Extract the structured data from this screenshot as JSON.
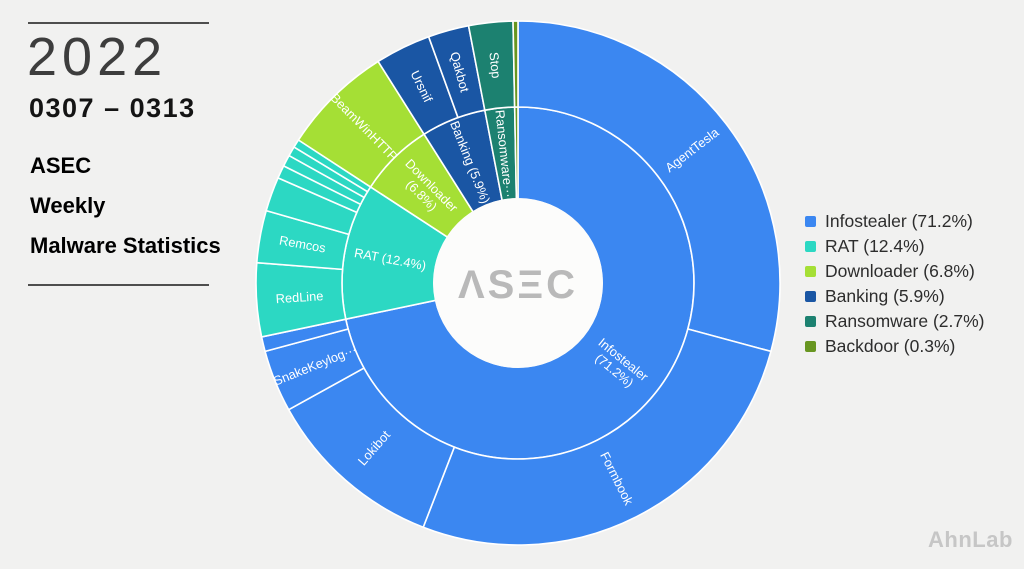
{
  "page": {
    "background": "#f1f1f0"
  },
  "left_panel": {
    "year": "2022",
    "date_range": "0307 – 0313",
    "title_lines": [
      "ASEC",
      "Weekly",
      "Malware Statistics"
    ]
  },
  "chart_data": {
    "type": "pie",
    "subtype": "sunburst-donut",
    "description": "Weekly malware statistics: category share (inner ring) and family breakdown (outer ring)",
    "unit": "%",
    "start_angle_deg": 0,
    "clockwise": true,
    "center_label": "ASEC",
    "center_label_color": "#b9b9b9",
    "hole_color": "#fcfcfb",
    "segment_border_color": "#ffffff",
    "legend_position": "right",
    "categories": [
      {
        "name": "Infostealer",
        "pct": 71.2,
        "color": "#3b87f1",
        "ring_label": "Infostealer\n(71.2%)",
        "children": [
          {
            "name": "AgentTesla",
            "pct": 29.0
          },
          {
            "name": "Formbook",
            "pct": 26.5
          },
          {
            "name": "Lokibot",
            "pct": 11.0
          },
          {
            "name": "SnakeKeylog···",
            "pct": 3.8
          },
          {
            "name": "",
            "pct": 0.9
          }
        ]
      },
      {
        "name": "RAT",
        "pct": 12.4,
        "color": "#2cd8c3",
        "ring_label": "RAT (12.4%)",
        "children": [
          {
            "name": "RedLine",
            "pct": 4.5
          },
          {
            "name": "Remcos",
            "pct": 3.2
          },
          {
            "name": "",
            "pct": 2.1
          },
          {
            "name": "",
            "pct": 0.8
          },
          {
            "name": "",
            "pct": 0.7
          },
          {
            "name": "",
            "pct": 0.6
          },
          {
            "name": "",
            "pct": 0.5
          }
        ]
      },
      {
        "name": "Downloader",
        "pct": 6.8,
        "color": "#a5df35",
        "ring_label": "Downloader\n(6.8%)",
        "children": [
          {
            "name": "BeamWinHTTP",
            "pct": 6.8
          }
        ]
      },
      {
        "name": "Banking",
        "pct": 5.9,
        "color": "#1a56a4",
        "ring_label": "Banking (5.9%)",
        "children": [
          {
            "name": "Ursnif",
            "pct": 3.4
          },
          {
            "name": "Qakbot",
            "pct": 2.5
          }
        ]
      },
      {
        "name": "Ransomware",
        "pct": 2.7,
        "color": "#1c8170",
        "ring_label": "Ransomware···",
        "children": [
          {
            "name": "Stop",
            "pct": 2.7
          }
        ]
      },
      {
        "name": "Backdoor",
        "pct": 0.3,
        "color": "#689621",
        "ring_label": "",
        "children": [
          {
            "name": "",
            "pct": 0.3
          }
        ]
      }
    ],
    "legend": [
      {
        "label": "Infostealer (71.2%)",
        "color": "#3b87f1"
      },
      {
        "label": "RAT (12.4%)",
        "color": "#2cd8c3"
      },
      {
        "label": "Downloader (6.8%)",
        "color": "#a5df35"
      },
      {
        "label": "Banking (5.9%)",
        "color": "#1a56a4"
      },
      {
        "label": "Ransomware (2.7%)",
        "color": "#1c8170"
      },
      {
        "label": "Backdoor (0.3%)",
        "color": "#689621"
      }
    ]
  },
  "footer": {
    "brand": "AhnLab"
  }
}
